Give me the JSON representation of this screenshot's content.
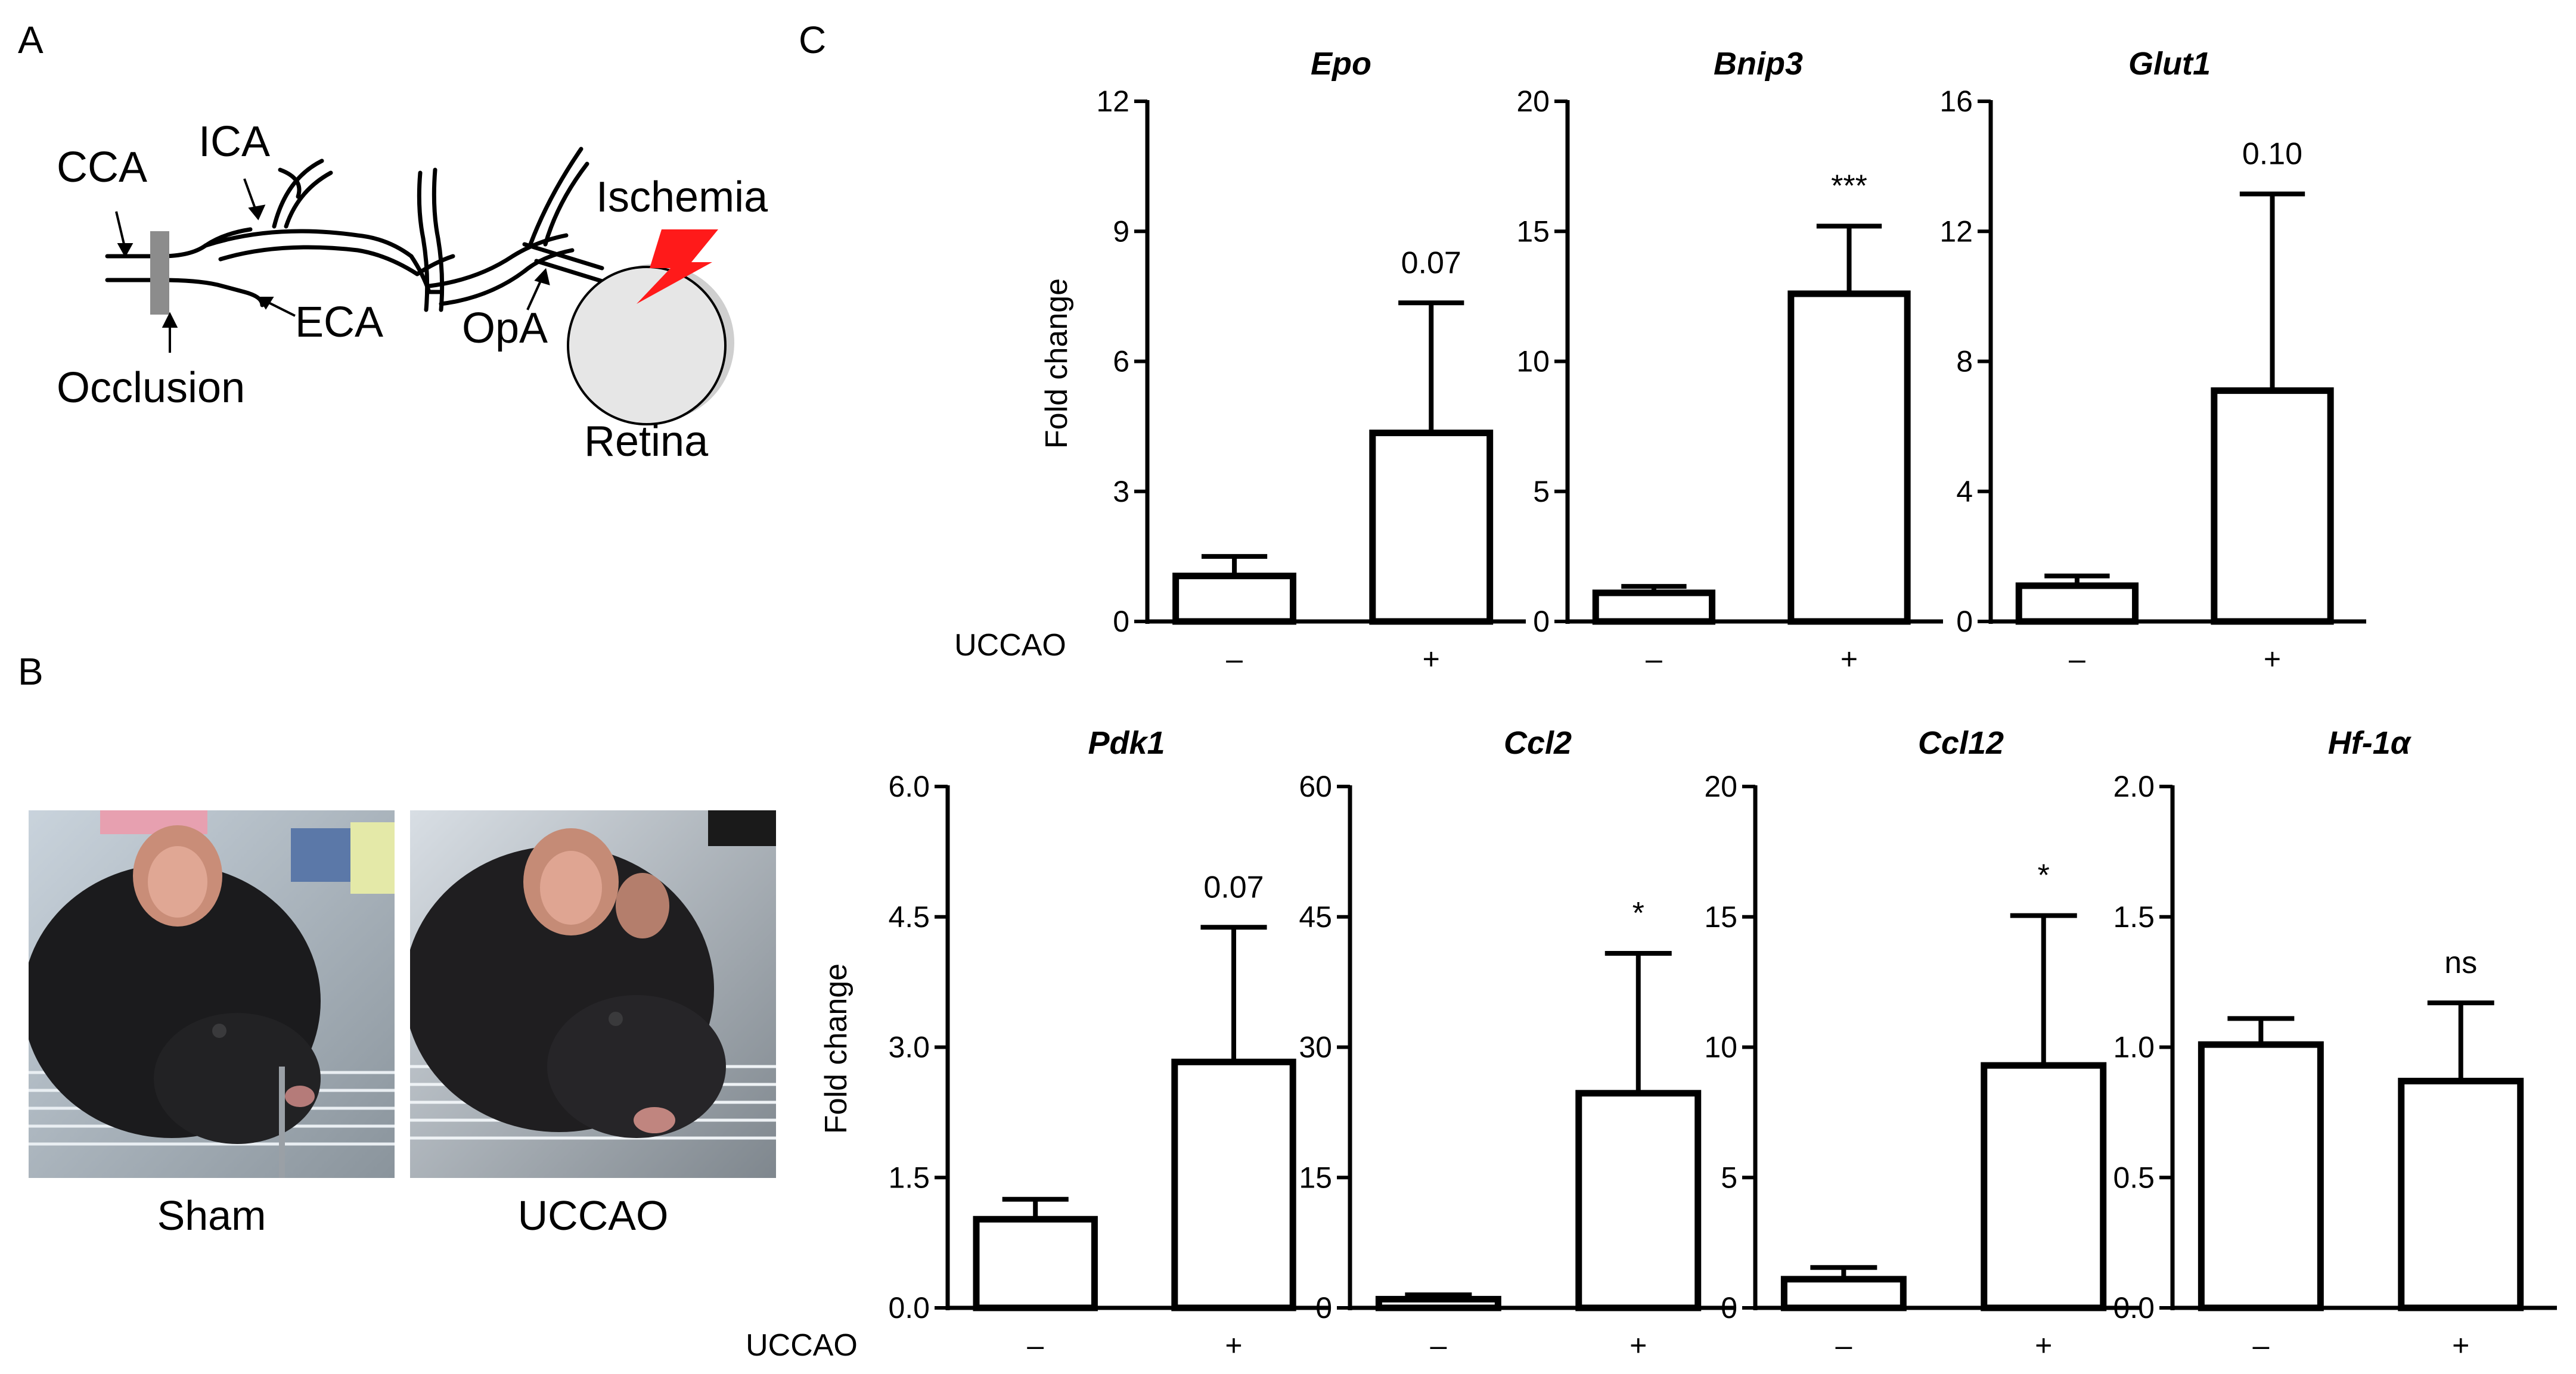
{
  "panels": {
    "a": "A",
    "b": "B",
    "c": "C"
  },
  "diagram": {
    "labels": {
      "cca": "CCA",
      "ica": "ICA",
      "eca": "ECA",
      "occlusion": "Occlusion",
      "opa": "OpA",
      "ischemia": "Ischemia",
      "retina": "Retina"
    },
    "colors": {
      "occluder": "#8c8c8c",
      "retina": "#e6e6e6",
      "bolt": "#ff1a1a"
    }
  },
  "photos": {
    "sham_caption": "Sham",
    "uccao_caption": "UCCAO"
  },
  "axis": {
    "ylabel": "Fold change",
    "condition_label": "UCCAO",
    "minus": "–",
    "plus": "+"
  },
  "chart_data": [
    {
      "type": "bar",
      "title": "Epo",
      "categories": [
        "–",
        "+"
      ],
      "values": [
        1.05,
        4.35
      ],
      "errors": [
        0.45,
        3.0
      ],
      "ylim": [
        0,
        12
      ],
      "yticks": [
        "0",
        "3",
        "6",
        "9",
        "12"
      ],
      "annotation": "0.07"
    },
    {
      "type": "bar",
      "title": "Bnip3",
      "categories": [
        "–",
        "+"
      ],
      "values": [
        1.1,
        12.6
      ],
      "errors": [
        0.25,
        2.6
      ],
      "ylim": [
        0,
        20
      ],
      "yticks": [
        "0",
        "5",
        "10",
        "15",
        "20"
      ],
      "annotation": "***"
    },
    {
      "type": "bar",
      "title": "Glut1",
      "categories": [
        "–",
        "+"
      ],
      "values": [
        1.1,
        7.1
      ],
      "errors": [
        0.3,
        6.05
      ],
      "ylim": [
        0,
        16
      ],
      "yticks": [
        "0",
        "4",
        "8",
        "12",
        "16"
      ],
      "annotation": "0.10"
    },
    {
      "type": "bar",
      "title": "Pdk1",
      "categories": [
        "–",
        "+"
      ],
      "values": [
        1.02,
        2.83
      ],
      "errors": [
        0.23,
        1.55
      ],
      "ylim": [
        0,
        6
      ],
      "yticks": [
        "0.0",
        "1.5",
        "3.0",
        "4.5",
        "6.0"
      ],
      "annotation": "0.07"
    },
    {
      "type": "bar",
      "title": "Ccl2",
      "categories": [
        "–",
        "+"
      ],
      "values": [
        1.0,
        24.7
      ],
      "errors": [
        0.5,
        16.1
      ],
      "ylim": [
        0,
        60
      ],
      "yticks": [
        "0",
        "15",
        "30",
        "45",
        "60"
      ],
      "annotation": "*"
    },
    {
      "type": "bar",
      "title": "Ccl12",
      "categories": [
        "–",
        "+"
      ],
      "values": [
        1.1,
        9.3
      ],
      "errors": [
        0.45,
        5.75
      ],
      "ylim": [
        0,
        20
      ],
      "yticks": [
        "0",
        "5",
        "10",
        "15",
        "20"
      ],
      "annotation": "*"
    },
    {
      "type": "bar",
      "title": "Hf-1α",
      "categories": [
        "–",
        "+"
      ],
      "values": [
        1.01,
        0.87
      ],
      "errors": [
        0.1,
        0.3
      ],
      "ylim": [
        0,
        2
      ],
      "yticks": [
        "0.0",
        "0.5",
        "1.0",
        "1.5",
        "2.0"
      ],
      "annotation": "ns"
    }
  ]
}
